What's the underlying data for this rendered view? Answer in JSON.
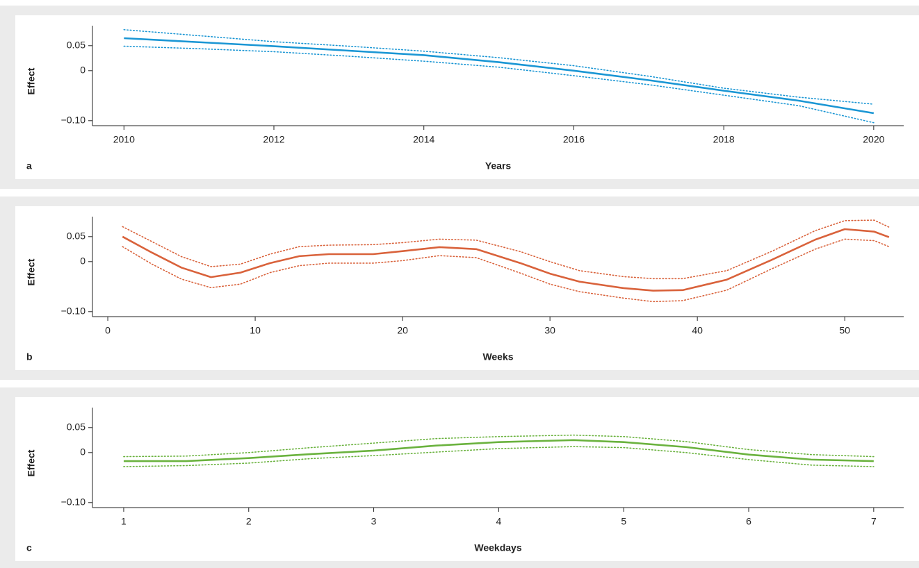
{
  "chart_data": [
    {
      "type": "line",
      "panel_label": "a",
      "xlabel": "Years",
      "ylabel": "Effect",
      "x": [
        2010,
        2011,
        2012,
        2013,
        2014,
        2015,
        2016,
        2017,
        2018,
        2019,
        2020
      ],
      "series": [
        {
          "color": "#1a96d4",
          "style": "solid",
          "values": [
            0.065,
            0.057,
            0.049,
            0.04,
            0.031,
            0.017,
            0,
            -0.019,
            -0.04,
            -0.06,
            -0.085
          ]
        },
        {
          "color": "#1a96d4",
          "style": "dotted",
          "values": [
            0.082,
            0.07,
            0.058,
            0.049,
            0.039,
            0.026,
            0.01,
            -0.011,
            -0.035,
            -0.053,
            -0.067
          ]
        },
        {
          "color": "#1a96d4",
          "style": "dotted",
          "values": [
            0.049,
            0.044,
            0.038,
            0.029,
            0.019,
            0.007,
            -0.01,
            -0.028,
            -0.049,
            -0.07,
            -0.104
          ]
        }
      ],
      "xlim": [
        2009.58,
        2020.4
      ],
      "xticks": [
        2010,
        2012,
        2014,
        2016,
        2018,
        2020
      ],
      "ylim": [
        -0.11,
        0.09
      ],
      "yticks": [
        0.05,
        0,
        {
          "value": -0.1,
          "label": "−0.10"
        }
      ]
    },
    {
      "type": "line",
      "panel_label": "b",
      "xlabel": "Weeks",
      "ylabel": "Effect",
      "x": [
        1,
        3,
        5,
        7,
        9,
        11,
        13,
        15,
        18,
        20,
        22.5,
        25,
        28,
        30,
        32,
        35,
        37,
        39,
        42,
        45,
        48,
        50,
        52,
        53
      ],
      "series": [
        {
          "color": "#d9623b",
          "style": "solid",
          "values": [
            0.05,
            0.018,
            -0.012,
            -0.031,
            -0.022,
            -0.003,
            0.011,
            0.015,
            0.015,
            0.021,
            0.029,
            0.025,
            -0.003,
            -0.024,
            -0.04,
            -0.053,
            -0.058,
            -0.057,
            -0.036,
            0.003,
            0.044,
            0.065,
            0.06,
            0.049
          ]
        },
        {
          "color": "#d9623b",
          "style": "dotted",
          "values": [
            0.07,
            0.04,
            0.01,
            -0.01,
            -0.005,
            0.015,
            0.03,
            0.033,
            0.034,
            0.038,
            0.045,
            0.043,
            0.02,
            0.0,
            -0.018,
            -0.03,
            -0.034,
            -0.034,
            -0.018,
            0.02,
            0.062,
            0.082,
            0.083,
            0.069
          ]
        },
        {
          "color": "#d9623b",
          "style": "dotted",
          "values": [
            0.03,
            -0.005,
            -0.035,
            -0.052,
            -0.045,
            -0.022,
            -0.008,
            -0.003,
            -0.003,
            0.002,
            0.012,
            0.008,
            -0.023,
            -0.045,
            -0.06,
            -0.073,
            -0.08,
            -0.078,
            -0.057,
            -0.015,
            0.025,
            0.045,
            0.042,
            0.03
          ]
        }
      ],
      "xlim": [
        -1.04,
        54
      ],
      "xticks": [
        0,
        10,
        20,
        30,
        40,
        50
      ],
      "ylim": [
        -0.11,
        0.09
      ],
      "yticks": [
        0.05,
        0,
        {
          "value": -0.1,
          "label": "−0.10"
        }
      ]
    },
    {
      "type": "line",
      "panel_label": "c",
      "xlabel": "Weekdays",
      "ylabel": "Effect",
      "x": [
        1,
        1.5,
        2,
        2.5,
        3,
        3.5,
        4,
        4.6,
        5,
        5.5,
        6,
        6.5,
        7
      ],
      "series": [
        {
          "color": "#6ab23e",
          "style": "solid",
          "values": [
            -0.017,
            -0.017,
            -0.011,
            -0.003,
            0.004,
            0.014,
            0.021,
            0.025,
            0.021,
            0.011,
            -0.004,
            -0.014,
            -0.017
          ]
        },
        {
          "color": "#6ab23e",
          "style": "dotted",
          "values": [
            -0.008,
            -0.007,
            0,
            0.01,
            0.019,
            0.028,
            0.032,
            0.035,
            0.032,
            0.022,
            0.006,
            -0.004,
            -0.008
          ]
        },
        {
          "color": "#6ab23e",
          "style": "dotted",
          "values": [
            -0.028,
            -0.026,
            -0.021,
            -0.012,
            -0.006,
            0.001,
            0.008,
            0.012,
            0.01,
            0,
            -0.014,
            -0.025,
            -0.028
          ]
        }
      ],
      "xlim": [
        0.75,
        7.24
      ],
      "xticks": [
        1,
        2,
        3,
        4,
        5,
        6,
        7
      ],
      "ylim": [
        -0.11,
        0.09
      ],
      "yticks": [
        0.05,
        0,
        {
          "value": -0.1,
          "label": "−0.10"
        }
      ]
    }
  ]
}
